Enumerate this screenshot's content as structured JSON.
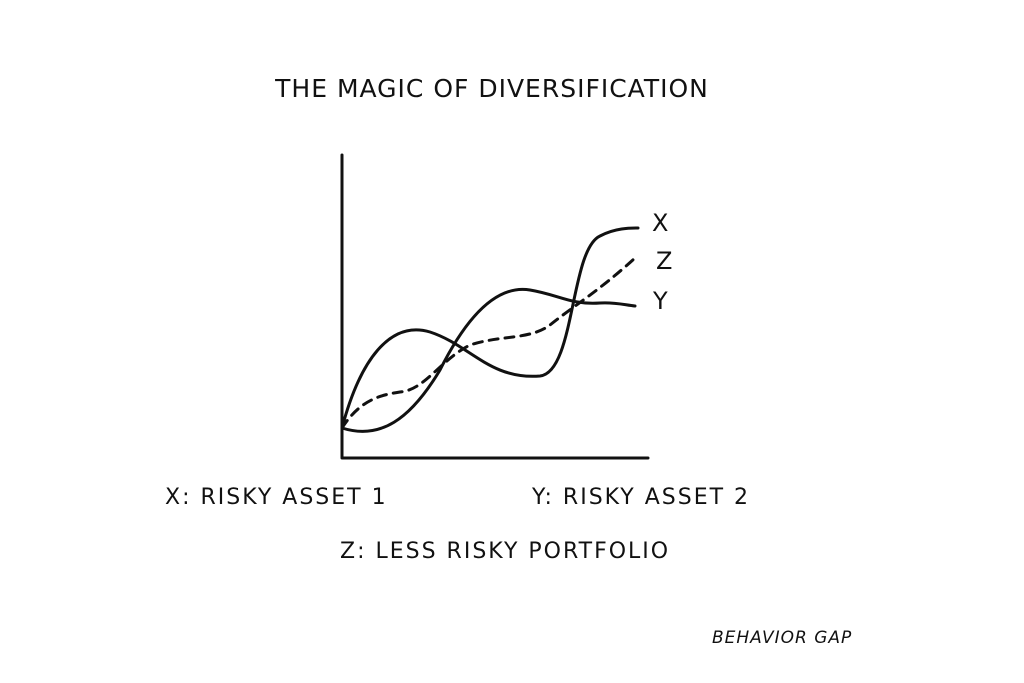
{
  "header": {
    "title": "THE MAGIC OF DIVERSIFICATION"
  },
  "curves": [
    {
      "label": "X"
    },
    {
      "label": "Z"
    },
    {
      "label": "Y"
    }
  ],
  "legend": [
    "X: RISKY ASSET 1",
    "Y: RISKY ASSET 2",
    "Z: LESS RISKY PORTFOLIO"
  ],
  "credit": "BEHAVIOR GAP"
}
